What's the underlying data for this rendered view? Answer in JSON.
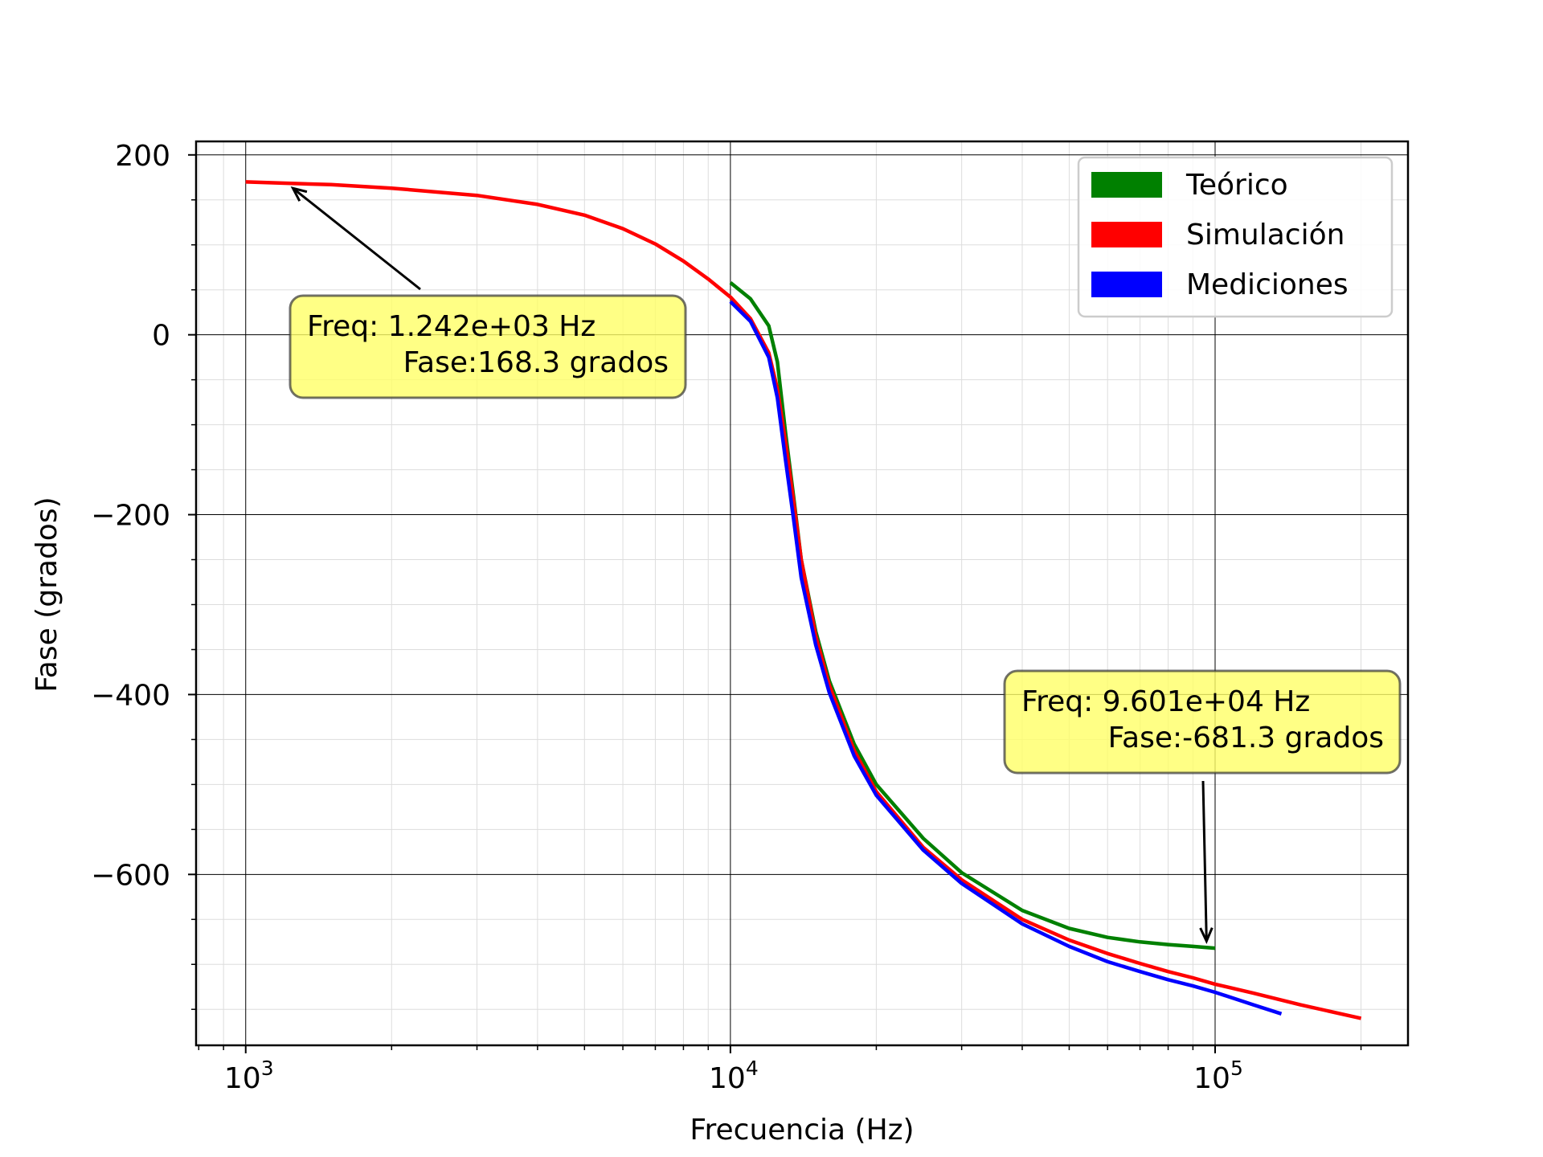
{
  "chart_data": {
    "type": "line",
    "title": "",
    "xlabel": "Frecuencia (Hz)",
    "ylabel": "Fase (grados)",
    "xscale": "log",
    "xlim": [
      790,
      250000
    ],
    "ylim": [
      -790,
      215
    ],
    "grid": true,
    "legend_position": "top-right",
    "x_ticks": [
      {
        "value": 1000,
        "base": "10",
        "exp": "3"
      },
      {
        "value": 10000,
        "base": "10",
        "exp": "4"
      },
      {
        "value": 100000,
        "base": "10",
        "exp": "5"
      }
    ],
    "y_ticks": [
      {
        "value": 200,
        "label": "200"
      },
      {
        "value": 0,
        "label": "0"
      },
      {
        "value": -200,
        "label": "−200"
      },
      {
        "value": -400,
        "label": "−400"
      },
      {
        "value": -600,
        "label": "−600"
      }
    ],
    "series": [
      {
        "name": "Teórico",
        "color": "#008000",
        "x": [
          10000,
          11000,
          12000,
          12500,
          13000,
          13500,
          14000,
          15000,
          16000,
          18000,
          20000,
          25000,
          30000,
          40000,
          50000,
          60000,
          70000,
          80000,
          90000,
          100000
        ],
        "y": [
          58,
          40,
          10,
          -30,
          -110,
          -180,
          -250,
          -330,
          -385,
          -455,
          -500,
          -560,
          -598,
          -640,
          -660,
          -670,
          -675,
          -678,
          -680,
          -682
        ]
      },
      {
        "name": "Simulación",
        "color": "#ff0000",
        "x": [
          1000,
          1242,
          1500,
          2000,
          3000,
          4000,
          5000,
          6000,
          7000,
          8000,
          9000,
          10000,
          11000,
          12000,
          12500,
          13000,
          13500,
          14000,
          15000,
          16000,
          18000,
          20000,
          25000,
          30000,
          40000,
          50000,
          60000,
          70000,
          80000,
          90000,
          100000,
          120000,
          150000,
          200000
        ],
        "y": [
          170,
          168.3,
          167,
          163,
          155,
          145,
          133,
          118,
          101,
          82,
          62,
          42,
          18,
          -20,
          -60,
          -120,
          -185,
          -250,
          -335,
          -390,
          -462,
          -508,
          -570,
          -606,
          -650,
          -673,
          -688,
          -699,
          -708,
          -715,
          -722,
          -732,
          -745,
          -760
        ]
      },
      {
        "name": "Mediciones",
        "color": "#0000ff",
        "x": [
          10000,
          11000,
          12000,
          12500,
          13000,
          13500,
          14000,
          15000,
          16000,
          18000,
          20000,
          25000,
          30000,
          40000,
          50000,
          60000,
          70000,
          80000,
          90000,
          100000,
          120000,
          137000
        ],
        "y": [
          37,
          15,
          -25,
          -70,
          -140,
          -205,
          -270,
          -345,
          -398,
          -468,
          -512,
          -573,
          -610,
          -655,
          -680,
          -697,
          -708,
          -717,
          -724,
          -731,
          -745,
          -755
        ]
      }
    ],
    "annotations": [
      {
        "line1": "Freq: 1.242e+03  Hz",
        "line2": "Fase:168.3 grados",
        "target_x": 1242,
        "target_y": 168.3
      },
      {
        "line1": "Freq: 9.601e+04  Hz",
        "line2": "Fase:-681.3 grados",
        "target_x": 96010,
        "target_y": -681.3
      }
    ]
  }
}
